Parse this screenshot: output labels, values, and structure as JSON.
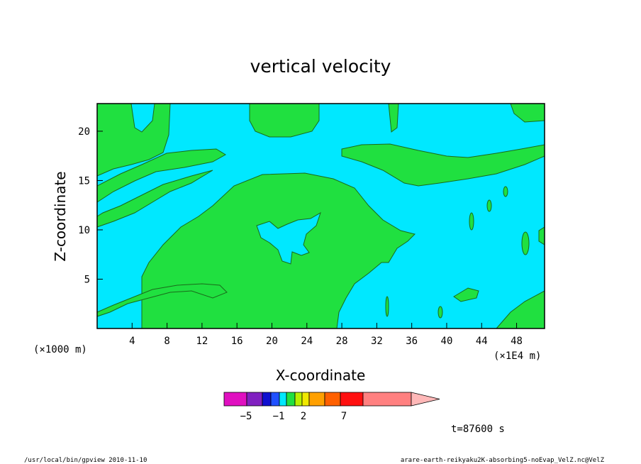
{
  "chart_data": {
    "type": "heatmap",
    "title": "vertical velocity",
    "xlabel": "X-coordinate",
    "ylabel": "Z-coordinate",
    "x_unit_left": "(×1000 m)",
    "x_unit_right": "(×1E4 m)",
    "xlim": [
      0,
      51.2
    ],
    "ylim": [
      0,
      22.8
    ],
    "x_ticks": [
      4,
      8,
      12,
      16,
      20,
      24,
      28,
      32,
      36,
      40,
      44,
      48
    ],
    "y_ticks": [
      5,
      10,
      15,
      20
    ],
    "time_label": "t=87600 s",
    "colorbar": {
      "colors": [
        "#e010c0",
        "#8020c0",
        "#1010d0",
        "#2050ff",
        "#00e8ff",
        "#20e040",
        "#b8f000",
        "#f0e800",
        "#ffa000",
        "#ff6000",
        "#ff1010",
        "#ff8080",
        "#ffb8b8"
      ],
      "labels": [
        "−5",
        "−1",
        "2",
        "7"
      ]
    },
    "fields": {
      "background": "#00e8ff",
      "positive": "#20e040"
    }
  },
  "footer": {
    "left": "/usr/local/bin/gpview  2010-11-10",
    "right": "arare-earth-reikyaku2K-absorbing5-noEvap_VelZ.nc@VelZ"
  }
}
